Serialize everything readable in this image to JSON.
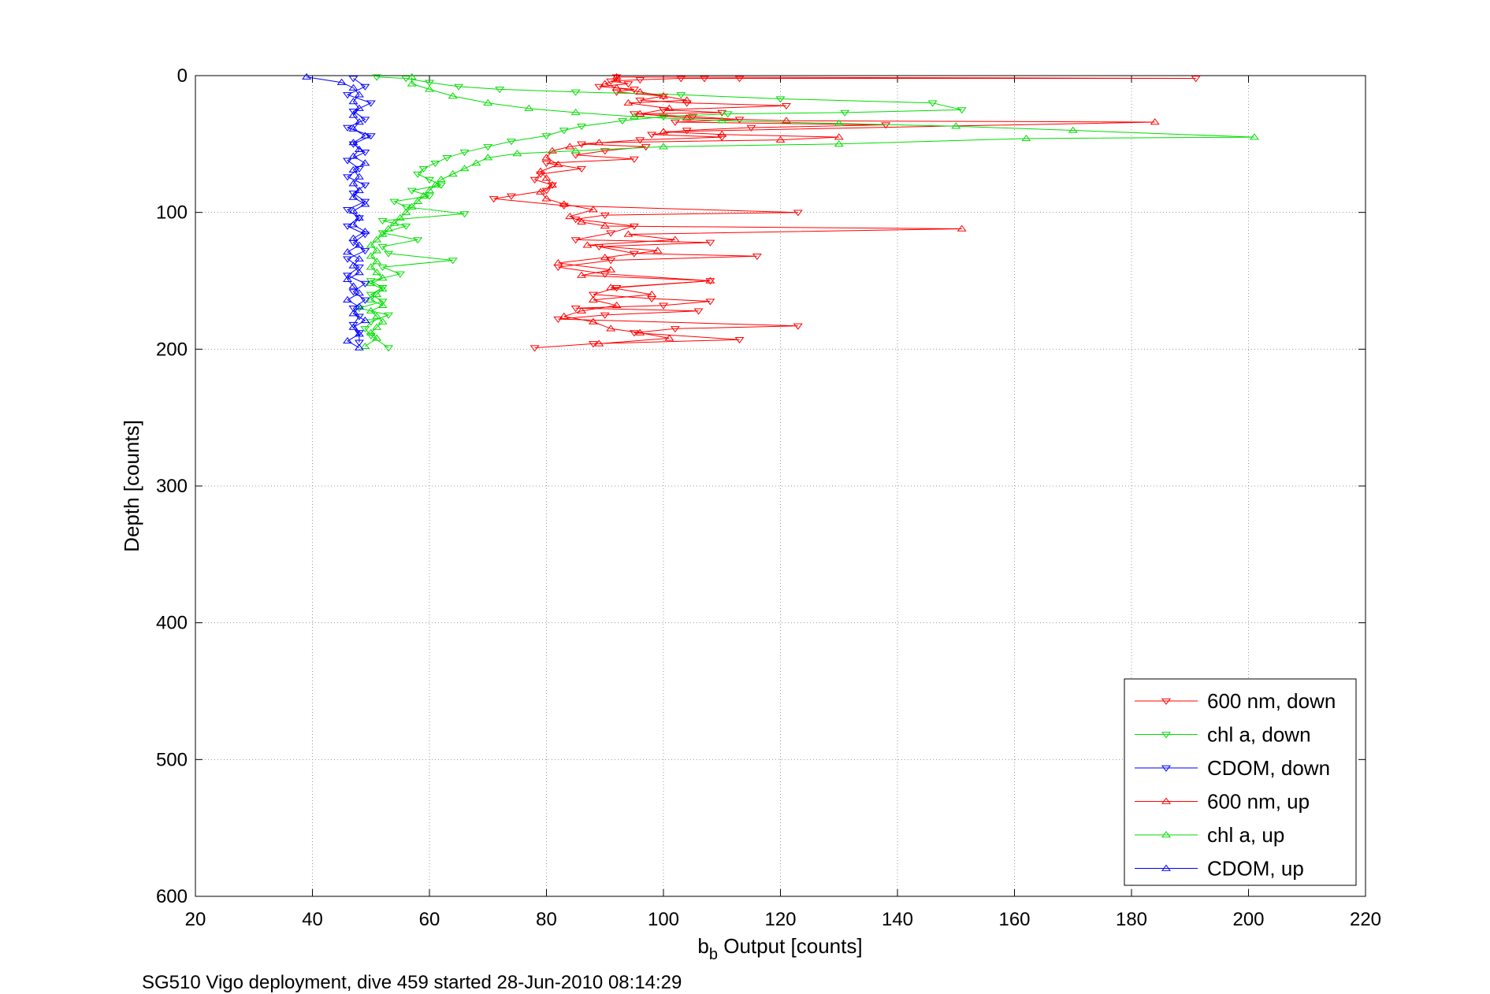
{
  "chart_data": {
    "type": "line",
    "xlabel_main": "b",
    "xlabel_sub": "b",
    "xlabel_rest": " Output [counts]",
    "ylabel": "Depth [counts]",
    "xlim": [
      20,
      220
    ],
    "ylim": [
      0,
      600
    ],
    "y_reversed": true,
    "x_ticks": [
      20,
      40,
      60,
      80,
      100,
      120,
      140,
      160,
      180,
      200,
      220
    ],
    "y_ticks": [
      0,
      100,
      200,
      300,
      400,
      500,
      600
    ],
    "grid": true,
    "legend_position": "bottom-right",
    "caption": "SG510 Vigo deployment, dive 459 started 28-Jun-2010 08:14:29",
    "series": [
      {
        "name": "600 nm, down",
        "color": "#ff0000",
        "marker": "triangle-down",
        "points": [
          [
            92,
            1
          ],
          [
            191,
            2
          ],
          [
            113,
            2
          ],
          [
            107,
            2
          ],
          [
            103,
            2
          ],
          [
            96,
            3
          ],
          [
            91,
            4
          ],
          [
            94,
            6
          ],
          [
            89,
            8
          ],
          [
            95,
            10
          ],
          [
            92,
            12
          ],
          [
            100,
            15
          ],
          [
            96,
            18
          ],
          [
            104,
            20
          ],
          [
            121,
            22
          ],
          [
            100,
            25
          ],
          [
            110,
            27
          ],
          [
            95,
            28
          ],
          [
            105,
            30
          ],
          [
            113,
            32
          ],
          [
            102,
            34
          ],
          [
            138,
            36
          ],
          [
            115,
            38
          ],
          [
            104,
            40
          ],
          [
            98,
            43
          ],
          [
            110,
            45
          ],
          [
            96,
            47
          ],
          [
            86,
            50
          ],
          [
            97,
            52
          ],
          [
            90,
            55
          ],
          [
            85,
            58
          ],
          [
            95,
            61
          ],
          [
            80,
            64
          ],
          [
            86,
            68
          ],
          [
            79,
            72
          ],
          [
            78,
            76
          ],
          [
            81,
            80
          ],
          [
            80,
            84
          ],
          [
            74,
            88
          ],
          [
            71,
            90
          ],
          [
            83,
            95
          ],
          [
            123,
            100
          ],
          [
            90,
            102
          ],
          [
            85,
            105
          ],
          [
            95,
            110
          ],
          [
            91,
            115
          ],
          [
            85,
            120
          ],
          [
            108,
            122
          ],
          [
            89,
            125
          ],
          [
            95,
            130
          ],
          [
            116,
            132
          ],
          [
            91,
            135
          ],
          [
            82,
            140
          ],
          [
            90,
            145
          ],
          [
            108,
            150
          ],
          [
            92,
            155
          ],
          [
            88,
            160
          ],
          [
            98,
            163
          ],
          [
            108,
            165
          ],
          [
            100,
            168
          ],
          [
            85,
            170
          ],
          [
            106,
            172
          ],
          [
            90,
            175
          ],
          [
            82,
            178
          ],
          [
            123,
            183
          ],
          [
            102,
            185
          ],
          [
            95,
            188
          ],
          [
            113,
            193
          ],
          [
            88,
            196
          ],
          [
            78,
            199
          ]
        ]
      },
      {
        "name": "chl a, down",
        "color": "#00dd00",
        "marker": "triangle-down",
        "points": [
          [
            51,
            1
          ],
          [
            56,
            2
          ],
          [
            60,
            5
          ],
          [
            65,
            8
          ],
          [
            72,
            10
          ],
          [
            85,
            12
          ],
          [
            103,
            14
          ],
          [
            120,
            17
          ],
          [
            146,
            20
          ],
          [
            151,
            25
          ],
          [
            131,
            27
          ],
          [
            111,
            28
          ],
          [
            100,
            30
          ],
          [
            93,
            33
          ],
          [
            86,
            37
          ],
          [
            83,
            40
          ],
          [
            80,
            44
          ],
          [
            74,
            48
          ],
          [
            70,
            52
          ],
          [
            66,
            56
          ],
          [
            63,
            60
          ],
          [
            61,
            64
          ],
          [
            59,
            68
          ],
          [
            58,
            72
          ],
          [
            60,
            76
          ],
          [
            62,
            80
          ],
          [
            57,
            84
          ],
          [
            60,
            88
          ],
          [
            54,
            92
          ],
          [
            56,
            96
          ],
          [
            66,
            101
          ],
          [
            52,
            106
          ],
          [
            56,
            110
          ],
          [
            52,
            115
          ],
          [
            58,
            120
          ],
          [
            52,
            125
          ],
          [
            53,
            130
          ],
          [
            64,
            135
          ],
          [
            52,
            140
          ],
          [
            55,
            145
          ],
          [
            50,
            150
          ],
          [
            52,
            155
          ],
          [
            50,
            160
          ],
          [
            52,
            165
          ],
          [
            48,
            170
          ],
          [
            53,
            175
          ],
          [
            50,
            180
          ],
          [
            49,
            185
          ],
          [
            50,
            190
          ],
          [
            53,
            199
          ]
        ]
      },
      {
        "name": "CDOM, down",
        "color": "#0000ff",
        "marker": "triangle-down",
        "points": [
          [
            47,
            2
          ],
          [
            49,
            8
          ],
          [
            46,
            14
          ],
          [
            50,
            20
          ],
          [
            47,
            26
          ],
          [
            49,
            32
          ],
          [
            46,
            38
          ],
          [
            50,
            44
          ],
          [
            47,
            50
          ],
          [
            49,
            56
          ],
          [
            46,
            62
          ],
          [
            48,
            68
          ],
          [
            46,
            74
          ],
          [
            49,
            80
          ],
          [
            47,
            86
          ],
          [
            49,
            92
          ],
          [
            46,
            98
          ],
          [
            48,
            104
          ],
          [
            46,
            110
          ],
          [
            49,
            116
          ],
          [
            47,
            122
          ],
          [
            49,
            128
          ],
          [
            46,
            134
          ],
          [
            48,
            140
          ],
          [
            46,
            146
          ],
          [
            49,
            152
          ],
          [
            47,
            158
          ],
          [
            49,
            164
          ],
          [
            47,
            170
          ],
          [
            48,
            176
          ],
          [
            47,
            182
          ],
          [
            48,
            188
          ],
          [
            48,
            195
          ]
        ]
      },
      {
        "name": "600 nm, up",
        "color": "#ff0000",
        "marker": "triangle-up",
        "points": [
          [
            89,
            196
          ],
          [
            101,
            192
          ],
          [
            96,
            188
          ],
          [
            91,
            185
          ],
          [
            88,
            180
          ],
          [
            83,
            176
          ],
          [
            86,
            172
          ],
          [
            92,
            168
          ],
          [
            88,
            164
          ],
          [
            98,
            160
          ],
          [
            91,
            155
          ],
          [
            108,
            150
          ],
          [
            86,
            146
          ],
          [
            91,
            142
          ],
          [
            82,
            137
          ],
          [
            90,
            133
          ],
          [
            99,
            128
          ],
          [
            87,
            124
          ],
          [
            102,
            120
          ],
          [
            94,
            116
          ],
          [
            151,
            112
          ],
          [
            90,
            110
          ],
          [
            86,
            107
          ],
          [
            84,
            103
          ],
          [
            88,
            98
          ],
          [
            83,
            94
          ],
          [
            80,
            90
          ],
          [
            79,
            85
          ],
          [
            81,
            80
          ],
          [
            80,
            75
          ],
          [
            79,
            70
          ],
          [
            82,
            65
          ],
          [
            80,
            60
          ],
          [
            81,
            55
          ],
          [
            84,
            52
          ],
          [
            89,
            49
          ],
          [
            120,
            47
          ],
          [
            130,
            45
          ],
          [
            110,
            43
          ],
          [
            100,
            41
          ],
          [
            184,
            34
          ],
          [
            121,
            33
          ],
          [
            104,
            31
          ],
          [
            96,
            28
          ],
          [
            101,
            24
          ],
          [
            94,
            20
          ],
          [
            104,
            18
          ],
          [
            100,
            15
          ],
          [
            96,
            12
          ],
          [
            92,
            9
          ],
          [
            90,
            6
          ],
          [
            92,
            3
          ],
          [
            92,
            1
          ]
        ]
      },
      {
        "name": "chl a, up",
        "color": "#00dd00",
        "marker": "triangle-up",
        "points": [
          [
            49,
            198
          ],
          [
            51,
            192
          ],
          [
            50,
            188
          ],
          [
            51,
            184
          ],
          [
            52,
            180
          ],
          [
            51,
            176
          ],
          [
            50,
            172
          ],
          [
            52,
            168
          ],
          [
            50,
            164
          ],
          [
            51,
            160
          ],
          [
            52,
            156
          ],
          [
            50,
            152
          ],
          [
            52,
            148
          ],
          [
            51,
            144
          ],
          [
            50,
            140
          ],
          [
            51,
            136
          ],
          [
            50,
            132
          ],
          [
            51,
            128
          ],
          [
            50,
            124
          ],
          [
            51,
            120
          ],
          [
            52,
            116
          ],
          [
            53,
            112
          ],
          [
            54,
            108
          ],
          [
            55,
            104
          ],
          [
            56,
            100
          ],
          [
            57,
            96
          ],
          [
            58,
            92
          ],
          [
            59,
            88
          ],
          [
            60,
            84
          ],
          [
            61,
            80
          ],
          [
            62,
            76
          ],
          [
            64,
            72
          ],
          [
            66,
            68
          ],
          [
            68,
            64
          ],
          [
            70,
            60
          ],
          [
            75,
            57
          ],
          [
            85,
            55
          ],
          [
            100,
            52
          ],
          [
            130,
            50
          ],
          [
            162,
            46
          ],
          [
            201,
            45
          ],
          [
            170,
            40
          ],
          [
            150,
            37
          ],
          [
            130,
            35
          ],
          [
            110,
            33
          ],
          [
            95,
            30
          ],
          [
            85,
            27
          ],
          [
            77,
            24
          ],
          [
            70,
            20
          ],
          [
            64,
            15
          ],
          [
            60,
            10
          ],
          [
            57,
            6
          ],
          [
            57,
            1
          ]
        ]
      },
      {
        "name": "CDOM, up",
        "color": "#0000ff",
        "marker": "triangle-up",
        "points": [
          [
            48,
            199
          ],
          [
            46,
            194
          ],
          [
            48,
            189
          ],
          [
            47,
            184
          ],
          [
            49,
            179
          ],
          [
            47,
            174
          ],
          [
            48,
            169
          ],
          [
            46,
            164
          ],
          [
            48,
            159
          ],
          [
            47,
            154
          ],
          [
            46,
            149
          ],
          [
            48,
            144
          ],
          [
            47,
            139
          ],
          [
            48,
            134
          ],
          [
            46,
            129
          ],
          [
            48,
            124
          ],
          [
            47,
            119
          ],
          [
            49,
            114
          ],
          [
            47,
            109
          ],
          [
            48,
            104
          ],
          [
            47,
            99
          ],
          [
            49,
            94
          ],
          [
            47,
            89
          ],
          [
            48,
            84
          ],
          [
            47,
            79
          ],
          [
            48,
            74
          ],
          [
            47,
            69
          ],
          [
            49,
            64
          ],
          [
            47,
            59
          ],
          [
            48,
            54
          ],
          [
            47,
            49
          ],
          [
            49,
            44
          ],
          [
            47,
            39
          ],
          [
            48,
            34
          ],
          [
            47,
            29
          ],
          [
            48,
            24
          ],
          [
            47,
            19
          ],
          [
            48,
            14
          ],
          [
            47,
            9
          ],
          [
            45,
            5
          ],
          [
            39,
            1
          ]
        ]
      }
    ]
  }
}
